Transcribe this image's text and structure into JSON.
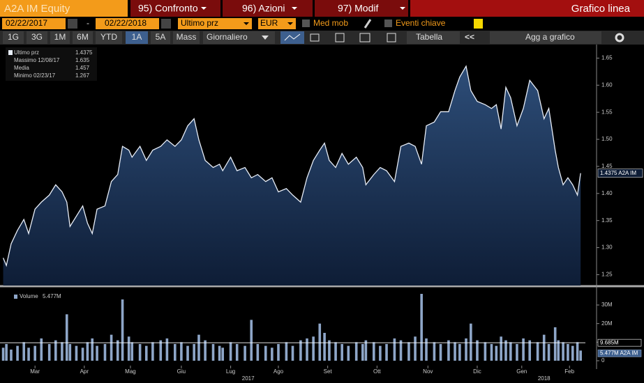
{
  "toolbar": {
    "security": "A2A IM Equity",
    "tabs": [
      "95) Confronto",
      "96) Azioni",
      "97) Modif"
    ],
    "view": "Grafico linea",
    "start_date": "02/22/2017",
    "separator": "-",
    "end_date": "02/22/2018",
    "field": "Ultimo prz",
    "currency": "EUR",
    "options": [
      "Med mob",
      "Eventi chiave"
    ],
    "periods": [
      "1G",
      "3G",
      "1M",
      "6M",
      "YTD",
      "1A",
      "5A",
      "Mass"
    ],
    "active_period_index": 5,
    "frequency": "Giornaliero",
    "table": "Tabella",
    "back": "<<",
    "add": "Agg a grafico"
  },
  "chart_data": [
    {
      "type": "area",
      "xlim": [
        0,
        368
      ],
      "ylim": [
        1.23,
        1.675
      ],
      "yticks": [
        1.25,
        {
          "value": 1.3,
          "label": "1.30"
        },
        1.35,
        {
          "value": 1.4,
          "label": "1.40"
        },
        1.45,
        {
          "value": 1.5,
          "label": "1.50"
        },
        1.55,
        {
          "value": 1.6,
          "label": "1.60"
        },
        1.65
      ],
      "x": [
        2,
        4,
        7,
        11,
        15,
        18,
        22,
        26,
        31,
        35,
        39,
        42,
        44,
        48,
        52,
        55,
        58,
        61,
        66,
        70,
        74,
        77,
        81,
        83,
        88,
        92,
        96,
        101,
        105,
        110,
        114,
        118,
        122,
        125,
        129,
        134,
        138,
        140,
        145,
        149,
        154,
        158,
        162,
        167,
        171,
        175,
        180,
        184,
        189,
        193,
        197,
        201,
        204,
        207,
        211,
        215,
        219,
        224,
        228,
        230,
        235,
        239,
        243,
        248,
        252,
        257,
        261,
        265,
        268,
        273,
        277,
        282,
        286,
        289,
        293,
        296,
        300,
        305,
        309,
        312,
        315,
        318,
        321,
        325,
        329,
        333,
        338,
        342,
        345,
        349,
        351,
        354,
        357,
        360,
        363,
        365
      ],
      "series": [
        {
          "name": "Ultimo prz",
          "color": "#e8eef8",
          "values": [
            1.281,
            1.267,
            1.307,
            1.332,
            1.352,
            1.326,
            1.371,
            1.384,
            1.397,
            1.416,
            1.403,
            1.384,
            1.339,
            1.358,
            1.377,
            1.345,
            1.326,
            1.371,
            1.377,
            1.422,
            1.435,
            1.487,
            1.48,
            1.467,
            1.487,
            1.461,
            1.48,
            1.487,
            1.499,
            1.487,
            1.499,
            1.525,
            1.538,
            1.499,
            1.461,
            1.448,
            1.454,
            1.442,
            1.467,
            1.442,
            1.448,
            1.429,
            1.435,
            1.422,
            1.429,
            1.403,
            1.409,
            1.397,
            1.384,
            1.429,
            1.461,
            1.48,
            1.493,
            1.461,
            1.448,
            1.474,
            1.454,
            1.467,
            1.448,
            1.416,
            1.435,
            1.448,
            1.442,
            1.422,
            1.487,
            1.493,
            1.487,
            1.454,
            1.525,
            1.532,
            1.551,
            1.551,
            1.59,
            1.615,
            1.635,
            1.59,
            1.57,
            1.564,
            1.557,
            1.564,
            1.519,
            1.596,
            1.577,
            1.525,
            1.557,
            1.609,
            1.59,
            1.538,
            1.557,
            1.48,
            1.448,
            1.416,
            1.429,
            1.416,
            1.397,
            1.4375
          ]
        }
      ],
      "legend": [
        {
          "label": "Ultimo prz",
          "value": 1.4375
        },
        {
          "label": "Massimo 12/08/17",
          "value": 1.635
        },
        {
          "label": "Media",
          "value": 1.457
        },
        {
          "label": "Minimo 02/23/17",
          "value": 1.267
        }
      ],
      "last_marker": {
        "value": 1.4375,
        "label": "1.4375 A2A IM"
      }
    },
    {
      "type": "bar",
      "xlim": [
        0,
        368
      ],
      "ylim": [
        0,
        39000000
      ],
      "yticks": [
        0,
        {
          "value": 10000000,
          "label": "10M"
        },
        {
          "value": 20000000,
          "label": "20M"
        },
        {
          "value": 30000000,
          "label": "30M"
        }
      ],
      "xticks": [
        {
          "value": 22,
          "label": "Mar"
        },
        {
          "value": 53,
          "label": "Apr"
        },
        {
          "value": 82,
          "label": "Mag"
        },
        {
          "value": 114,
          "label": "Giu"
        },
        {
          "value": 145,
          "label": "Lug"
        },
        {
          "value": 175,
          "label": "Ago"
        },
        {
          "value": 206,
          "label": "Set"
        },
        {
          "value": 237,
          "label": "Ott"
        },
        {
          "value": 269,
          "label": "Nov"
        },
        {
          "value": 300,
          "label": "Dic"
        },
        {
          "value": 328,
          "label": "Gen"
        },
        {
          "value": 358,
          "label": "Feb"
        }
      ],
      "year_ticks": [
        {
          "value": 156,
          "label": "2017"
        },
        {
          "value": 342,
          "label": "2018"
        }
      ],
      "x": [
        2,
        4,
        7,
        11,
        15,
        18,
        22,
        26,
        31,
        35,
        39,
        42,
        44,
        48,
        52,
        55,
        58,
        61,
        66,
        70,
        74,
        77,
        81,
        83,
        88,
        92,
        96,
        101,
        105,
        110,
        114,
        118,
        122,
        125,
        129,
        134,
        138,
        140,
        145,
        149,
        154,
        158,
        162,
        167,
        171,
        175,
        180,
        184,
        189,
        193,
        197,
        201,
        204,
        207,
        211,
        215,
        219,
        224,
        228,
        230,
        235,
        239,
        243,
        248,
        252,
        257,
        261,
        265,
        268,
        273,
        277,
        282,
        286,
        289,
        293,
        296,
        300,
        305,
        309,
        312,
        315,
        318,
        321,
        325,
        329,
        333,
        338,
        342,
        345,
        349,
        351,
        354,
        357,
        360,
        363,
        365
      ],
      "series": [
        {
          "name": "Volume",
          "color": "#8ea6c8",
          "values": [
            7000000,
            9000000,
            6000000,
            8000000,
            10000000,
            7000000,
            8000000,
            12000000,
            9000000,
            11000000,
            10000000,
            25000000,
            9000000,
            8000000,
            7000000,
            10000000,
            12000000,
            8000000,
            9000000,
            14000000,
            11000000,
            33000000,
            13000000,
            10000000,
            9000000,
            8000000,
            10000000,
            11000000,
            12000000,
            9000000,
            10000000,
            8000000,
            9000000,
            14000000,
            11000000,
            9000000,
            8000000,
            7000000,
            10000000,
            9000000,
            8000000,
            22000000,
            9000000,
            8000000,
            7000000,
            9000000,
            10000000,
            8000000,
            11000000,
            12000000,
            13000000,
            20000000,
            15000000,
            11000000,
            10000000,
            9000000,
            8000000,
            10000000,
            9000000,
            11000000,
            10000000,
            8000000,
            9000000,
            12000000,
            11000000,
            10000000,
            13000000,
            36000000,
            12000000,
            10000000,
            9000000,
            11000000,
            10000000,
            9000000,
            12000000,
            20000000,
            11000000,
            10000000,
            9000000,
            8000000,
            13000000,
            11000000,
            10000000,
            9000000,
            12000000,
            11000000,
            10000000,
            14000000,
            9000000,
            18000000,
            11000000,
            10000000,
            9000000,
            8000000,
            10000000,
            5477000
          ]
        }
      ],
      "legend_value": {
        "value": 5477000,
        "label": "5.477M"
      },
      "markers": [
        {
          "value": 9685000,
          "label": "9.685M",
          "color": "#ffffff"
        },
        {
          "value": 5477000,
          "label": "5.477M A2A IM",
          "color": "#8ea6c8"
        }
      ]
    }
  ]
}
